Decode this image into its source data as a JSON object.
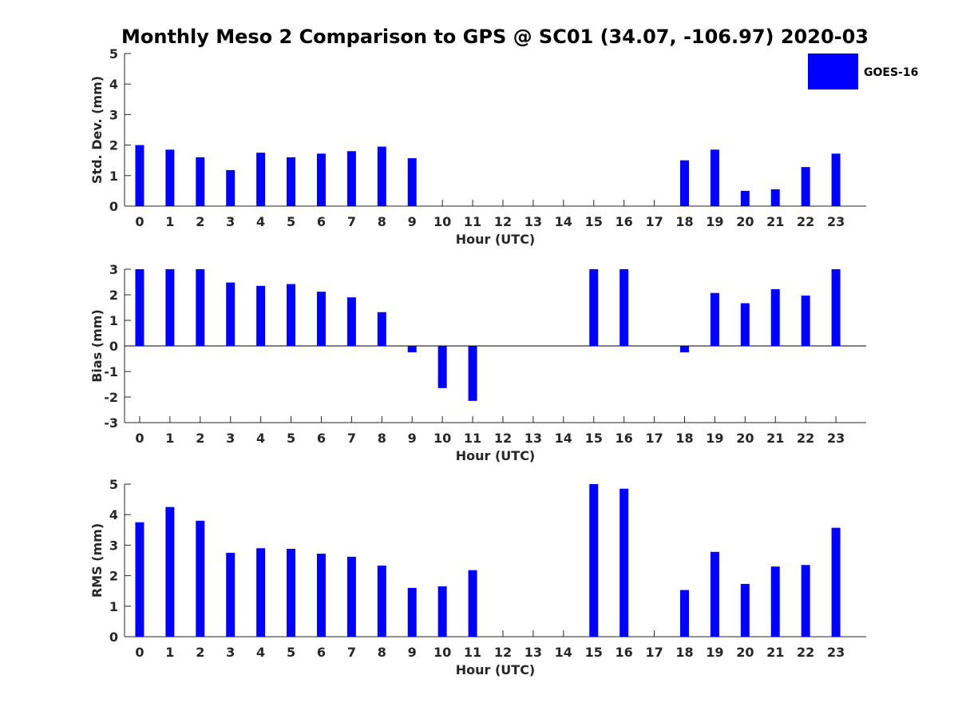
{
  "title": "Monthly Meso 2 Comparison to GPS @ SC01 (34.07, -106.97) 2020-03",
  "legend": {
    "label": "GOES-16",
    "color": "#0000ff"
  },
  "chart_data": [
    {
      "type": "bar",
      "xlabel": "Hour (UTC)",
      "ylabel": "Std. Dev. (mm)",
      "ylim": [
        0,
        5
      ],
      "yticks": [
        "0",
        "1",
        "2",
        "3",
        "4",
        "5"
      ],
      "categories": [
        "0",
        "1",
        "2",
        "3",
        "4",
        "5",
        "6",
        "7",
        "8",
        "9",
        "10",
        "11",
        "12",
        "13",
        "14",
        "15",
        "16",
        "17",
        "18",
        "19",
        "20",
        "21",
        "22",
        "23"
      ],
      "series": [
        {
          "name": "GOES-16",
          "values": [
            2.0,
            1.85,
            1.6,
            1.18,
            1.75,
            1.6,
            1.72,
            1.8,
            1.95,
            1.57,
            null,
            null,
            null,
            null,
            null,
            null,
            null,
            null,
            1.5,
            1.85,
            0.5,
            0.55,
            1.28,
            1.72
          ]
        }
      ]
    },
    {
      "type": "bar",
      "xlabel": "Hour (UTC)",
      "ylabel": "Bias (mm)",
      "ylim": [
        -3,
        3
      ],
      "yticks": [
        "-3",
        "-2",
        "-1",
        "0",
        "1",
        "2",
        "3"
      ],
      "categories": [
        "0",
        "1",
        "2",
        "3",
        "4",
        "5",
        "6",
        "7",
        "8",
        "9",
        "10",
        "11",
        "12",
        "13",
        "14",
        "15",
        "16",
        "17",
        "18",
        "19",
        "20",
        "21",
        "22",
        "23"
      ],
      "series": [
        {
          "name": "GOES-16",
          "values": [
            3.0,
            3.0,
            3.0,
            2.48,
            2.35,
            2.42,
            2.12,
            1.9,
            1.32,
            -0.25,
            -1.65,
            -2.15,
            null,
            null,
            null,
            3.0,
            3.0,
            null,
            -0.25,
            2.07,
            1.67,
            2.22,
            1.97,
            3.0
          ]
        }
      ]
    },
    {
      "type": "bar",
      "xlabel": "Hour (UTC)",
      "ylabel": "RMS (mm)",
      "ylim": [
        0,
        5
      ],
      "yticks": [
        "0",
        "1",
        "2",
        "3",
        "4",
        "5"
      ],
      "categories": [
        "0",
        "1",
        "2",
        "3",
        "4",
        "5",
        "6",
        "7",
        "8",
        "9",
        "10",
        "11",
        "12",
        "13",
        "14",
        "15",
        "16",
        "17",
        "18",
        "19",
        "20",
        "21",
        "22",
        "23"
      ],
      "series": [
        {
          "name": "GOES-16",
          "values": [
            3.75,
            4.25,
            3.8,
            2.75,
            2.9,
            2.88,
            2.72,
            2.62,
            2.33,
            1.6,
            1.65,
            2.18,
            null,
            null,
            null,
            5.0,
            4.85,
            null,
            1.53,
            2.78,
            1.73,
            2.3,
            2.35,
            3.57
          ]
        }
      ]
    }
  ]
}
